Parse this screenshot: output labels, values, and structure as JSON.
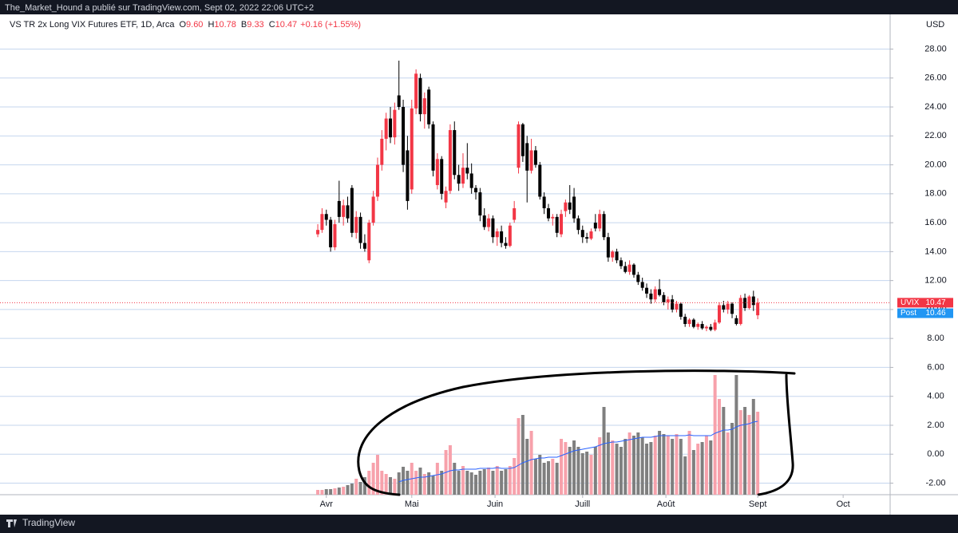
{
  "header": {
    "publisher": "The_Market_Hound a publié sur TradingView.com, Sept 02, 2022 22:06 UTC+2"
  },
  "chart_data": {
    "type": "candlestick",
    "title": "VS TR 2x Long VIX Futures ETF, 1D, Arca",
    "legend_values": [
      {
        "label": "O",
        "value": "9.60"
      },
      {
        "label": "H",
        "value": "10.78"
      },
      {
        "label": "B",
        "value": "9.33"
      },
      {
        "label": "C",
        "value": "10.47"
      },
      {
        "value": "+0.16 (+1.55%)"
      }
    ],
    "y_unit": "USD",
    "open": [
      15.2,
      15.5,
      16.6,
      16.2,
      14.3,
      17.5,
      16.4,
      17.2,
      18.4,
      15.3,
      16.4,
      14.6,
      13.4,
      16.0,
      17.8,
      20.0,
      21.8,
      23.2,
      21.9,
      24.8,
      24.0,
      21.0,
      18.3,
      23.9,
      26.0,
      23.5,
      25.2,
      22.8,
      18.6,
      20.4,
      17.4,
      18.2,
      22.4,
      19.3,
      18.7,
      19.8,
      19.4,
      18.4,
      18.1,
      16.5,
      15.7,
      16.3,
      15.0,
      15.4,
      14.6,
      14.4,
      16.2,
      19.8,
      22.8,
      21.5,
      19.6,
      21.0,
      20.0,
      17.8,
      17.0,
      16.3,
      16.4,
      15.2,
      16.8,
      17.4,
      17.8,
      16.3,
      15.5,
      15.0,
      14.9,
      16.0,
      15.6,
      16.6,
      15.0,
      13.6,
      14.0,
      13.4,
      13.0,
      12.6,
      13.1,
      12.4,
      11.9,
      11.5,
      11.1,
      10.7,
      11.4,
      11.0,
      10.5,
      10.7,
      10.0,
      10.4,
      9.5,
      9.0,
      9.3,
      8.8,
      9.0,
      8.7,
      8.8,
      8.6,
      9.1,
      10.3,
      10.0,
      10.4,
      9.4,
      9.0,
      10.8,
      10.1,
      10.9,
      9.6
    ],
    "high": [
      15.9,
      17.0,
      16.9,
      16.4,
      16.2,
      18.9,
      17.6,
      17.8,
      18.6,
      16.8,
      16.7,
      15.2,
      16.2,
      18.2,
      20.5,
      22.4,
      23.6,
      24.0,
      24.3,
      27.2,
      24.5,
      22.0,
      24.5,
      26.6,
      26.3,
      25.0,
      25.4,
      23.0,
      20.8,
      20.6,
      18.5,
      22.8,
      23.0,
      20.0,
      20.8,
      21.5,
      20.1,
      18.6,
      18.4,
      17.0,
      16.6,
      16.5,
      15.6,
      15.8,
      15.0,
      16.0,
      17.5,
      23.0,
      22.9,
      22.0,
      21.8,
      21.3,
      20.2,
      18.1,
      17.3,
      16.6,
      16.6,
      16.9,
      17.6,
      18.6,
      18.4,
      16.5,
      15.8,
      15.3,
      15.6,
      16.6,
      16.9,
      16.8,
      15.3,
      14.1,
      14.2,
      13.6,
      13.3,
      13.4,
      13.2,
      12.6,
      12.2,
      11.8,
      11.4,
      11.6,
      12.1,
      11.2,
      10.9,
      11.0,
      10.6,
      10.5,
      9.7,
      9.4,
      9.4,
      9.1,
      9.2,
      8.9,
      9.0,
      9.3,
      10.5,
      10.6,
      10.6,
      10.5,
      9.6,
      11.0,
      11.1,
      11.0,
      11.3,
      10.78
    ],
    "low": [
      15.0,
      15.3,
      15.8,
      14.0,
      14.1,
      16.0,
      15.8,
      16.0,
      15.0,
      14.9,
      14.2,
      14.0,
      13.2,
      15.8,
      17.5,
      19.6,
      21.0,
      21.5,
      21.4,
      23.8,
      19.5,
      16.9,
      18.0,
      23.5,
      23.0,
      22.5,
      22.5,
      19.2,
      18.3,
      17.6,
      17.0,
      18.0,
      19.0,
      18.2,
      18.4,
      19.0,
      18.0,
      17.6,
      16.1,
      15.5,
      15.4,
      14.6,
      14.4,
      14.3,
      14.2,
      14.3,
      16.0,
      19.4,
      20.2,
      17.4,
      19.4,
      19.8,
      17.6,
      16.6,
      16.1,
      15.8,
      15.0,
      15.0,
      16.4,
      16.6,
      16.0,
      15.2,
      14.6,
      14.6,
      14.8,
      15.4,
      15.4,
      14.8,
      13.3,
      13.3,
      13.2,
      12.8,
      12.5,
      12.4,
      12.2,
      11.7,
      11.3,
      10.8,
      10.4,
      10.5,
      10.9,
      10.3,
      10.0,
      9.8,
      9.8,
      9.3,
      8.8,
      8.8,
      8.7,
      8.6,
      8.6,
      8.5,
      8.5,
      8.5,
      9.0,
      9.8,
      9.7,
      9.4,
      8.9,
      8.9,
      9.9,
      10.0,
      9.9,
      9.33
    ],
    "close": [
      15.5,
      16.6,
      16.2,
      14.3,
      15.9,
      16.4,
      17.2,
      16.3,
      15.3,
      16.4,
      14.6,
      14.2,
      16.0,
      17.8,
      20.0,
      21.8,
      23.2,
      21.9,
      23.8,
      24.0,
      20.0,
      17.5,
      23.9,
      26.3,
      23.5,
      24.6,
      22.8,
      19.6,
      20.4,
      18.0,
      18.2,
      22.4,
      19.3,
      18.7,
      19.8,
      19.4,
      18.4,
      18.1,
      16.5,
      15.7,
      16.3,
      15.0,
      15.4,
      14.6,
      14.4,
      15.8,
      17.0,
      22.8,
      20.6,
      19.6,
      21.0,
      20.0,
      17.8,
      17.0,
      16.3,
      16.4,
      15.3,
      16.6,
      17.4,
      16.9,
      16.3,
      15.5,
      15.0,
      14.9,
      15.4,
      15.6,
      16.6,
      15.0,
      13.6,
      14.0,
      13.4,
      13.0,
      12.6,
      13.1,
      12.4,
      11.9,
      11.5,
      11.1,
      10.7,
      11.4,
      11.0,
      10.5,
      10.7,
      10.0,
      10.4,
      9.5,
      9.0,
      9.3,
      8.8,
      9.0,
      8.7,
      8.8,
      8.6,
      9.1,
      10.3,
      10.0,
      10.4,
      9.7,
      9.0,
      10.8,
      10.1,
      10.9,
      10.31,
      10.47
    ],
    "volume": [
      6,
      6,
      7,
      7,
      8,
      9,
      10,
      12,
      14,
      20,
      16,
      22,
      30,
      40,
      50,
      30,
      26,
      22,
      20,
      28,
      35,
      30,
      40,
      30,
      34,
      26,
      28,
      24,
      40,
      30,
      56,
      62,
      40,
      30,
      36,
      30,
      28,
      25,
      30,
      32,
      34,
      30,
      36,
      30,
      32,
      36,
      46,
      96,
      100,
      70,
      80,
      45,
      50,
      40,
      42,
      45,
      40,
      70,
      66,
      60,
      68,
      60,
      52,
      54,
      50,
      60,
      72,
      110,
      78,
      68,
      64,
      60,
      70,
      78,
      74,
      78,
      72,
      64,
      66,
      74,
      80,
      76,
      74,
      70,
      76,
      70,
      48,
      80,
      56,
      64,
      66,
      74,
      68,
      150,
      120,
      110,
      78,
      90,
      150,
      106,
      110,
      100,
      120,
      104
    ],
    "volume_ma": [
      null,
      null,
      null,
      null,
      null,
      null,
      null,
      null,
      null,
      null,
      null,
      null,
      null,
      null,
      null,
      null,
      null,
      null,
      null,
      16,
      18,
      19,
      20,
      21,
      22,
      22,
      23,
      24,
      25,
      26,
      28,
      30,
      31,
      31,
      32,
      32,
      32,
      32,
      33,
      33,
      33,
      33,
      34,
      33,
      33,
      33,
      34,
      37,
      40,
      42,
      44,
      45,
      46,
      46,
      47,
      47,
      47,
      49,
      51,
      53,
      55,
      56,
      57,
      58,
      59,
      60,
      62,
      64,
      65,
      66,
      66,
      67,
      68,
      69,
      70,
      71,
      72,
      72,
      72,
      73,
      74,
      74,
      74,
      74,
      74,
      74,
      74,
      75,
      74,
      74,
      74,
      74,
      74,
      77,
      79,
      81,
      81,
      82,
      85,
      87,
      88,
      89,
      91,
      92
    ],
    "up_color": "#f23645",
    "down_color": "#000000",
    "volume_up_color": "#f7a1ab",
    "volume_down_color": "#7f7f7f",
    "ma_color": "#2962ff",
    "ylim": [
      -2.8,
      30.4
    ],
    "yticks": [
      {
        "value": -2,
        "label": "-2.00"
      },
      {
        "value": 0,
        "label": "0.00"
      },
      {
        "value": 2,
        "label": "2.00"
      },
      {
        "value": 4,
        "label": "4.00"
      },
      {
        "value": 6,
        "label": "6.00"
      },
      {
        "value": 8,
        "label": "8.00"
      },
      {
        "value": 10,
        "label": "10.00"
      },
      {
        "value": 12,
        "label": "12.00"
      },
      {
        "value": 14,
        "label": "14.00"
      },
      {
        "value": 16,
        "label": "16.00"
      },
      {
        "value": 18,
        "label": "18.00"
      },
      {
        "value": 20,
        "label": "20.00"
      },
      {
        "value": 22,
        "label": "22.00"
      },
      {
        "value": 24,
        "label": "24.00"
      },
      {
        "value": 26,
        "label": "26.00"
      },
      {
        "value": 28,
        "label": "28.00"
      }
    ],
    "xlim": [
      -74.4,
      134
    ],
    "xticks": [
      {
        "value": 2,
        "label": "Avr"
      },
      {
        "value": 22,
        "label": "Mai"
      },
      {
        "value": 41.5,
        "label": "Juin"
      },
      {
        "value": 62,
        "label": "Juill"
      },
      {
        "value": 81.5,
        "label": "Août"
      },
      {
        "value": 103,
        "label": "Sept"
      },
      {
        "value": 123,
        "label": "Oct"
      }
    ],
    "grid": true,
    "price_tags": [
      {
        "name": "UVIX",
        "value": 10.47,
        "color": "#f23645"
      },
      {
        "name": "Post",
        "value": 10.46,
        "color": "#2196f3"
      }
    ]
  },
  "footer": {
    "brand": "TradingView"
  }
}
